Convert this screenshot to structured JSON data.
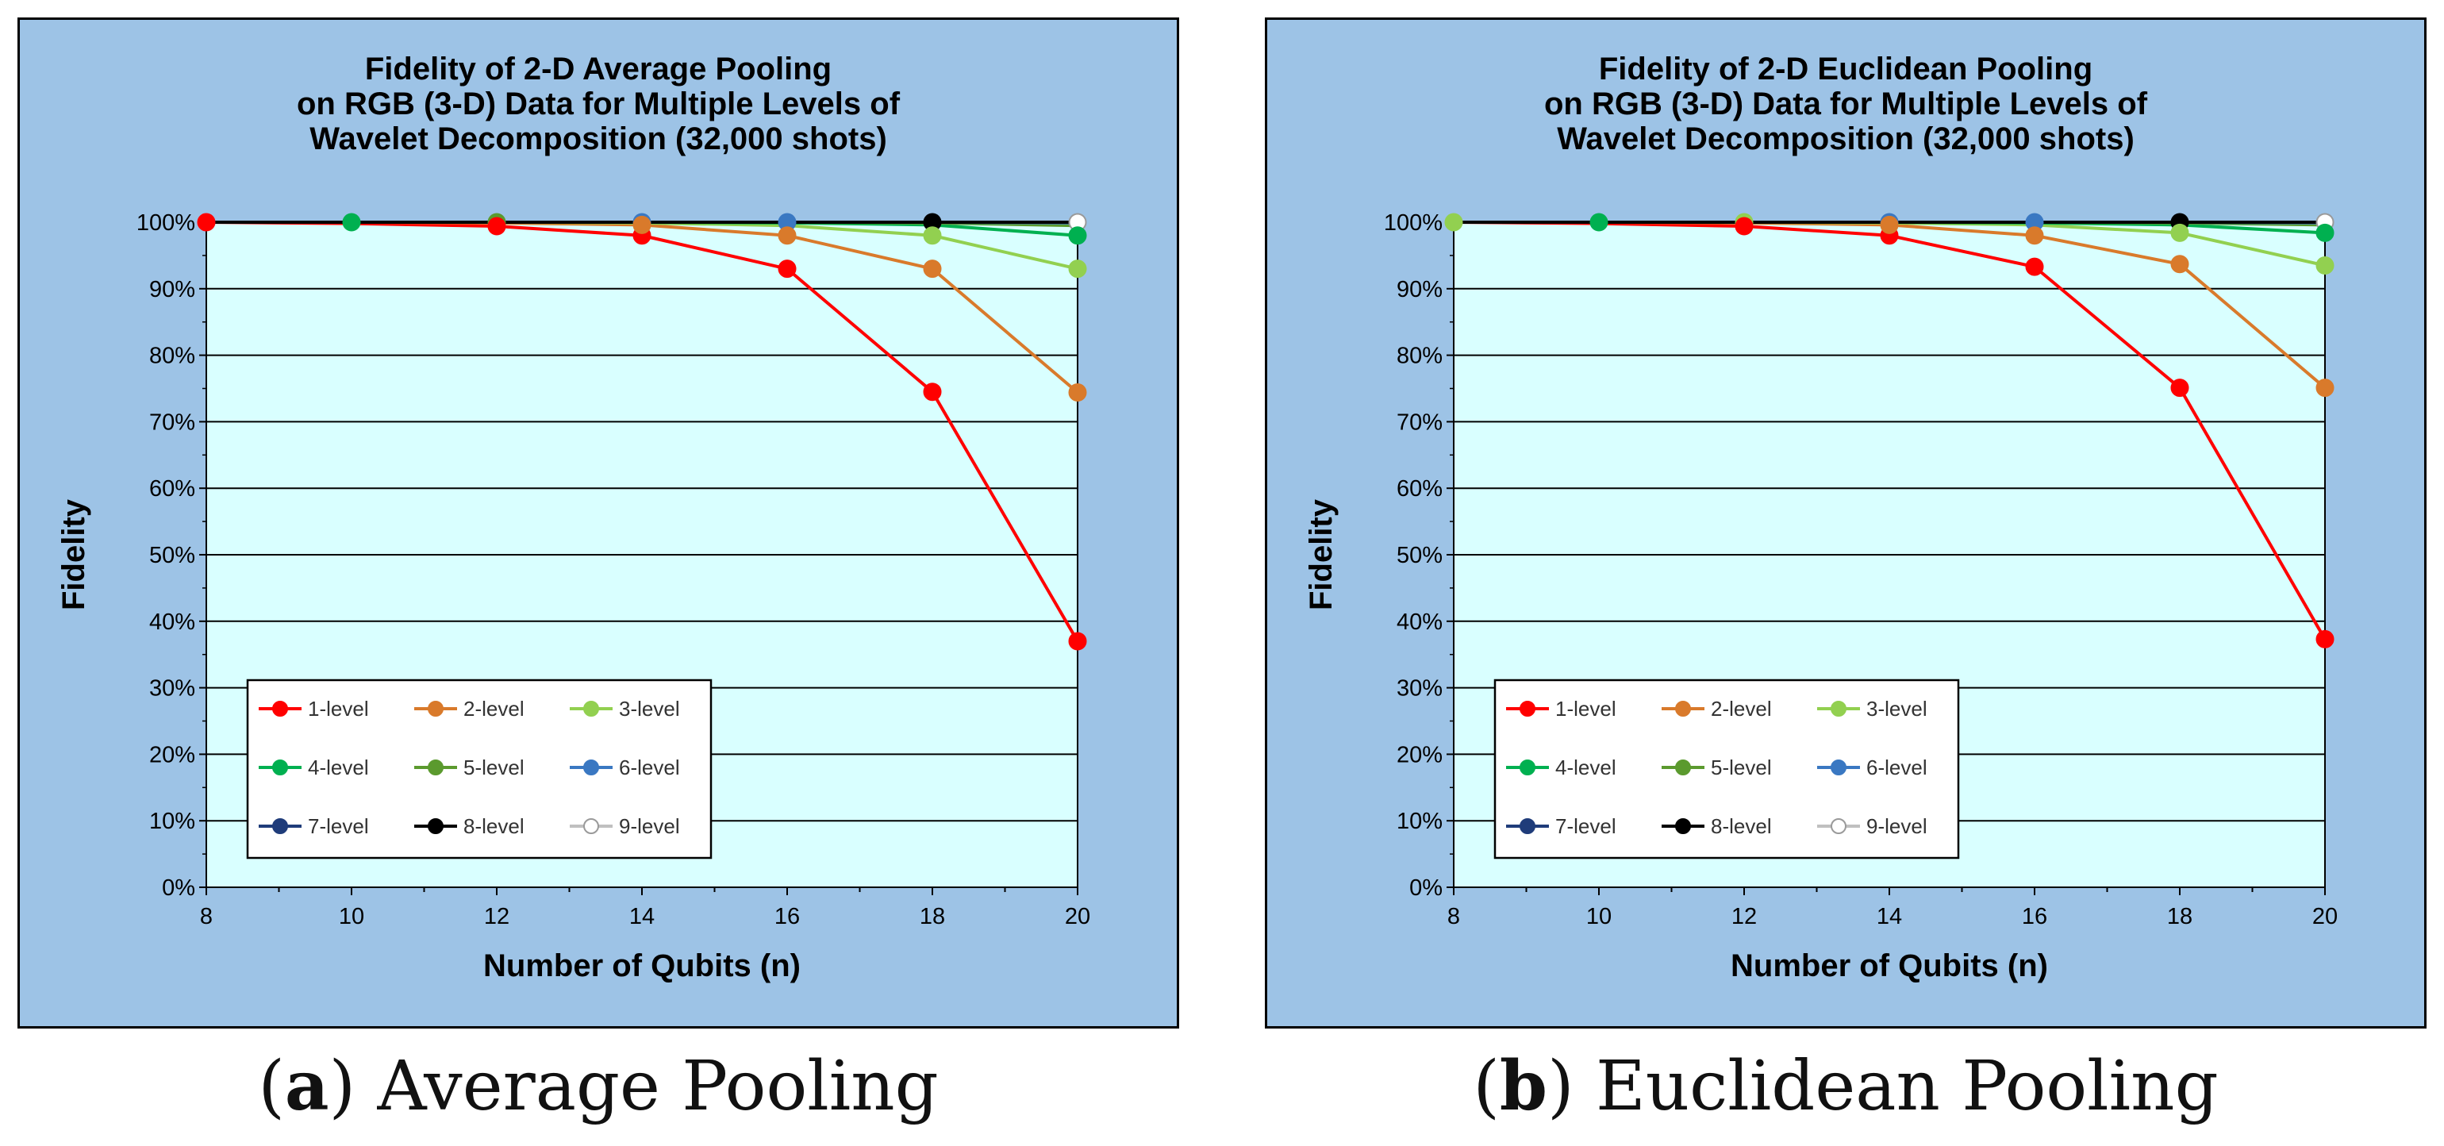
{
  "colors": {
    "panel_bg": "#9dc3e6",
    "plot_bg": "#d9ffff",
    "border": "#000000",
    "series": {
      "1-level": "#ff0000",
      "2-level": "#d97a2b",
      "3-level": "#92d050",
      "4-level": "#00b050",
      "5-level": "#5b9a2e",
      "6-level": "#3a78c2",
      "7-level": "#1f3c7a",
      "8-level": "#000000",
      "9-level": "#c0c0c0"
    }
  },
  "chart_data": [
    {
      "type": "line",
      "title_lines": [
        "Fidelity of 2-D Average Pooling",
        "on RGB (3-D) Data for Multiple Levels of",
        "Wavelet Decomposition (32,000 shots)"
      ],
      "xlabel": "Number of Qubits (n)",
      "ylabel": "Fidelity",
      "xlim": [
        8,
        20
      ],
      "ylim": [
        0,
        100
      ],
      "x_ticks": [
        "8",
        "10",
        "12",
        "14",
        "16",
        "18",
        "20"
      ],
      "y_ticks": [
        "0%",
        "10%",
        "20%",
        "30%",
        "40%",
        "50%",
        "60%",
        "70%",
        "80%",
        "90%",
        "100%"
      ],
      "grid": true,
      "legend_position": "bottom-left",
      "series": [
        {
          "name": "1-level",
          "x": [
            8,
            10,
            12,
            14,
            16,
            18,
            20
          ],
          "values": [
            100,
            99.8,
            99.4,
            98,
            93,
            74.5,
            37
          ]
        },
        {
          "name": "2-level",
          "x": [
            10,
            12,
            14,
            16,
            18,
            20
          ],
          "values": [
            100,
            99.9,
            99.6,
            98,
            93,
            74.4
          ]
        },
        {
          "name": "3-level",
          "x": [
            12,
            14,
            16,
            18,
            20
          ],
          "values": [
            100,
            99.9,
            99.5,
            98,
            93
          ]
        },
        {
          "name": "4-level",
          "x": [
            14,
            16,
            18,
            20
          ],
          "values": [
            100,
            99.9,
            99.6,
            98
          ]
        },
        {
          "name": "5-level",
          "x": [
            16,
            18,
            20
          ],
          "values": [
            100,
            99.9,
            99.5
          ]
        },
        {
          "name": "6-level",
          "x": [
            18,
            20
          ],
          "values": [
            100,
            99.9
          ]
        },
        {
          "name": "7-level",
          "x": [
            20
          ],
          "values": [
            100
          ]
        },
        {
          "name": "8-level",
          "x": [
            8,
            10,
            12,
            14,
            16,
            18,
            20
          ],
          "values": [
            100,
            100,
            100,
            100,
            100,
            100,
            100
          ]
        },
        {
          "name": "9-level",
          "x": [
            20
          ],
          "values": [
            100
          ]
        }
      ],
      "marker_points": [
        {
          "series": "1-level",
          "x": 8,
          "value": 100
        },
        {
          "series": "4-level",
          "x": 10,
          "value": 100
        },
        {
          "series": "5-level",
          "x": 12,
          "value": 100
        },
        {
          "series": "1-level",
          "x": 12,
          "value": 99.4
        },
        {
          "series": "6-level",
          "x": 14,
          "value": 100
        },
        {
          "series": "1-level",
          "x": 14,
          "value": 98
        },
        {
          "series": "2-level",
          "x": 14,
          "value": 99.6
        },
        {
          "series": "6-level",
          "x": 16,
          "value": 100
        },
        {
          "series": "1-level",
          "x": 16,
          "value": 93
        },
        {
          "series": "2-level",
          "x": 16,
          "value": 98
        },
        {
          "series": "8-level",
          "x": 18,
          "value": 100
        },
        {
          "series": "1-level",
          "x": 18,
          "value": 74.5
        },
        {
          "series": "2-level",
          "x": 18,
          "value": 93
        },
        {
          "series": "3-level",
          "x": 18,
          "value": 98
        },
        {
          "series": "9-level",
          "x": 20,
          "value": 100
        },
        {
          "series": "1-level",
          "x": 20,
          "value": 37
        },
        {
          "series": "2-level",
          "x": 20,
          "value": 74.4
        },
        {
          "series": "3-level",
          "x": 20,
          "value": 93
        },
        {
          "series": "4-level",
          "x": 20,
          "value": 98
        }
      ]
    },
    {
      "type": "line",
      "title_lines": [
        "Fidelity of 2-D Euclidean Pooling",
        "on RGB (3-D) Data for Multiple Levels of",
        "Wavelet Decomposition (32,000 shots)"
      ],
      "xlabel": "Number of Qubits (n)",
      "ylabel": "Fidelity",
      "xlim": [
        8,
        20
      ],
      "ylim": [
        0,
        100
      ],
      "x_ticks": [
        "8",
        "10",
        "12",
        "14",
        "16",
        "18",
        "20"
      ],
      "y_ticks": [
        "0%",
        "10%",
        "20%",
        "30%",
        "40%",
        "50%",
        "60%",
        "70%",
        "80%",
        "90%",
        "100%"
      ],
      "grid": true,
      "legend_position": "bottom-left",
      "series": [
        {
          "name": "1-level",
          "x": [
            8,
            10,
            12,
            14,
            16,
            18,
            20
          ],
          "values": [
            100,
            99.8,
            99.4,
            98,
            93.3,
            75.1,
            37.3
          ]
        },
        {
          "name": "2-level",
          "x": [
            10,
            12,
            14,
            16,
            18,
            20
          ],
          "values": [
            100,
            99.9,
            99.6,
            98,
            93.7,
            75.1
          ]
        },
        {
          "name": "3-level",
          "x": [
            12,
            14,
            16,
            18,
            20
          ],
          "values": [
            100,
            99.9,
            99.6,
            98.4,
            93.5
          ]
        },
        {
          "name": "4-level",
          "x": [
            14,
            16,
            18,
            20
          ],
          "values": [
            100,
            99.9,
            99.6,
            98.4
          ]
        },
        {
          "name": "5-level",
          "x": [
            16,
            18,
            20
          ],
          "values": [
            100,
            99.9,
            99.6
          ]
        },
        {
          "name": "6-level",
          "x": [
            18,
            20
          ],
          "values": [
            100,
            99.9
          ]
        },
        {
          "name": "7-level",
          "x": [
            20
          ],
          "values": [
            100
          ]
        },
        {
          "name": "8-level",
          "x": [
            8,
            10,
            12,
            14,
            16,
            18,
            20
          ],
          "values": [
            100,
            100,
            100,
            100,
            100,
            100,
            100
          ]
        },
        {
          "name": "9-level",
          "x": [
            20
          ],
          "values": [
            100
          ]
        }
      ],
      "marker_points": [
        {
          "series": "3-level",
          "x": 8,
          "value": 100
        },
        {
          "series": "4-level",
          "x": 10,
          "value": 100
        },
        {
          "series": "3-level",
          "x": 12,
          "value": 100
        },
        {
          "series": "1-level",
          "x": 12,
          "value": 99.4
        },
        {
          "series": "6-level",
          "x": 14,
          "value": 100
        },
        {
          "series": "1-level",
          "x": 14,
          "value": 98
        },
        {
          "series": "2-level",
          "x": 14,
          "value": 99.6
        },
        {
          "series": "6-level",
          "x": 16,
          "value": 100
        },
        {
          "series": "1-level",
          "x": 16,
          "value": 93.3
        },
        {
          "series": "2-level",
          "x": 16,
          "value": 98
        },
        {
          "series": "8-level",
          "x": 18,
          "value": 100
        },
        {
          "series": "1-level",
          "x": 18,
          "value": 75.1
        },
        {
          "series": "2-level",
          "x": 18,
          "value": 93.7
        },
        {
          "series": "3-level",
          "x": 18,
          "value": 98.4
        },
        {
          "series": "9-level",
          "x": 20,
          "value": 100
        },
        {
          "series": "1-level",
          "x": 20,
          "value": 37.3
        },
        {
          "series": "2-level",
          "x": 20,
          "value": 75.1
        },
        {
          "series": "3-level",
          "x": 20,
          "value": 93.5
        },
        {
          "series": "4-level",
          "x": 20,
          "value": 98.4
        }
      ]
    }
  ],
  "captions": [
    {
      "label": "(a)",
      "text": "Average Pooling"
    },
    {
      "label": "(b)",
      "text": "Euclidean Pooling"
    }
  ]
}
